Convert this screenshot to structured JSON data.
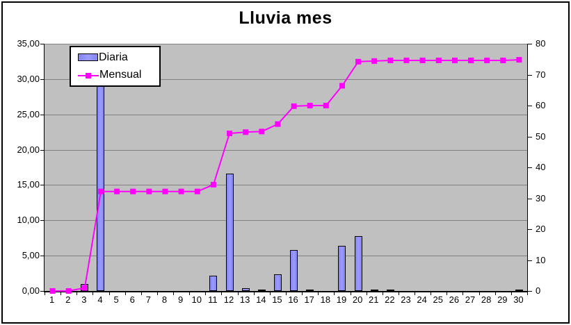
{
  "chart_data": {
    "type": "combo-bar-line",
    "title": "Lluvia mes",
    "categories": [
      "1",
      "2",
      "3",
      "4",
      "5",
      "6",
      "7",
      "8",
      "9",
      "10",
      "11",
      "12",
      "13",
      "14",
      "15",
      "16",
      "17",
      "18",
      "19",
      "20",
      "21",
      "22",
      "23",
      "24",
      "25",
      "26",
      "27",
      "28",
      "29",
      "30"
    ],
    "series": [
      {
        "name": "Diaria",
        "type": "bar",
        "axis": "left",
        "values": [
          0,
          0,
          1.0,
          31.2,
          0,
          0,
          0,
          0,
          0,
          0,
          2.2,
          16.6,
          0.4,
          0.2,
          2.4,
          5.8,
          0.2,
          0,
          6.4,
          7.8,
          0.2,
          0.2,
          0,
          0,
          0,
          0,
          0,
          0,
          0,
          0.2
        ]
      },
      {
        "name": "Mensual",
        "type": "line",
        "axis": "right",
        "values": [
          0,
          0,
          1.0,
          32.2,
          32.2,
          32.2,
          32.2,
          32.2,
          32.2,
          32.2,
          34.4,
          51.0,
          51.4,
          51.6,
          54.0,
          59.8,
          60.0,
          60.0,
          66.4,
          74.2,
          74.4,
          74.6,
          74.6,
          74.6,
          74.6,
          74.6,
          74.6,
          74.6,
          74.6,
          74.8
        ]
      }
    ],
    "left_axis": {
      "min": 0,
      "max": 35,
      "step": 5,
      "tick_labels_top_to_bottom": [
        "35,00",
        "30,00",
        "25,00",
        "20,00",
        "15,00",
        "10,00",
        "5,00",
        "0,00"
      ]
    },
    "right_axis": {
      "min": 0,
      "max": 80,
      "step": 10,
      "tick_labels_top_to_bottom": [
        "80",
        "70",
        "60",
        "50",
        "40",
        "30",
        "20",
        "10",
        "0"
      ]
    },
    "grid": true,
    "legend_position": "top-left",
    "colors": {
      "bar_fill": "#8484f4",
      "bar_border": "#000000",
      "line": "#ff00ff",
      "plot_background": "#c0c0c0",
      "gridline": "#808080",
      "axis": "#000000",
      "chart_background": "#ffffff",
      "text": "#000000"
    }
  }
}
